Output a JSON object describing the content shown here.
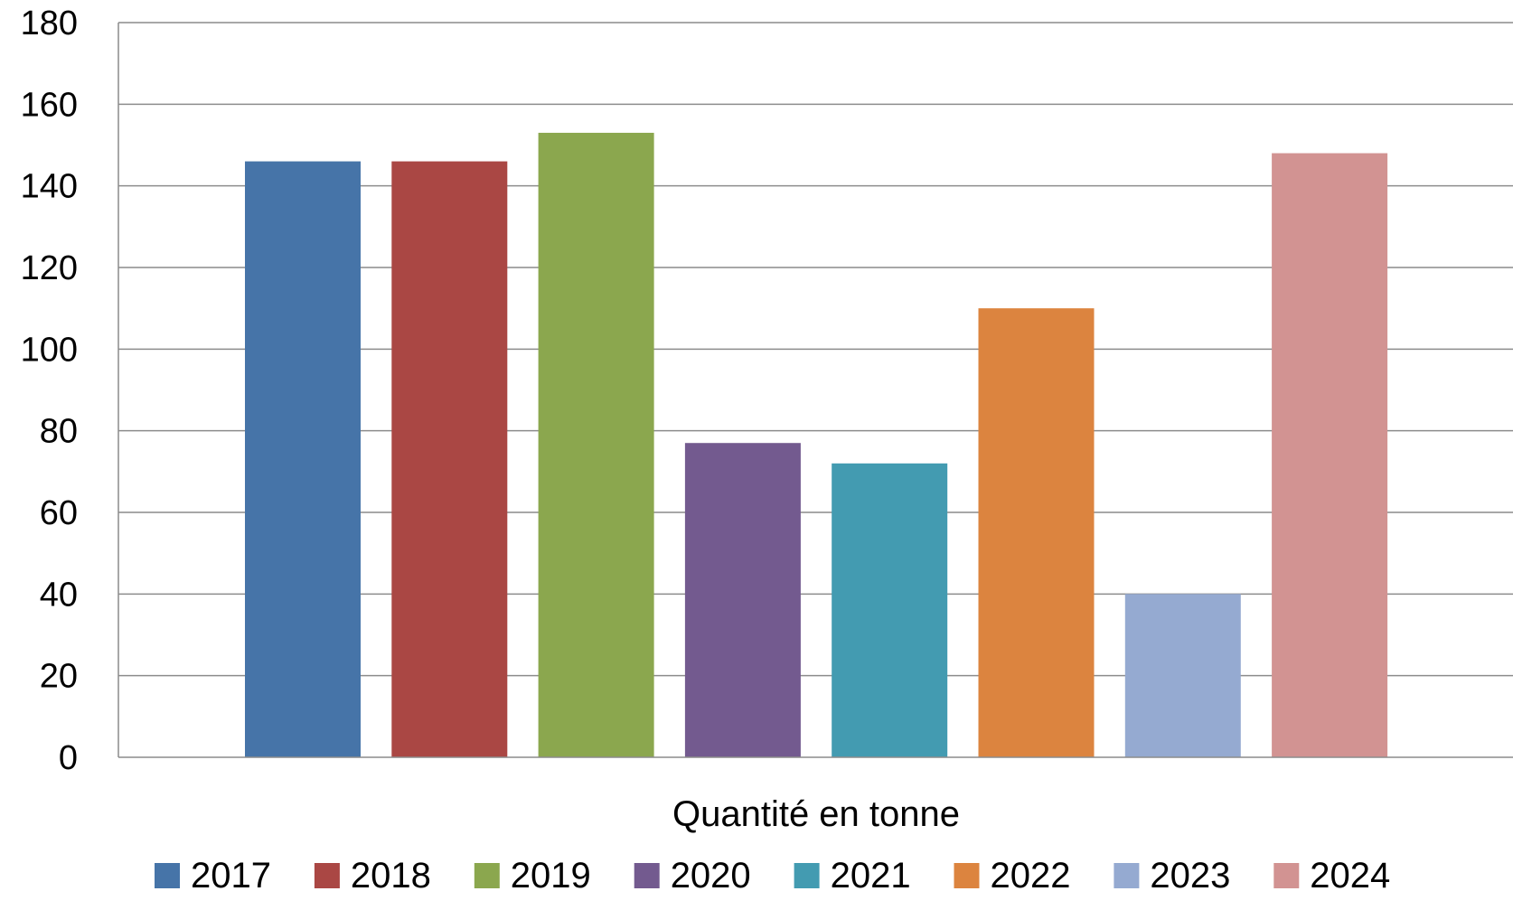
{
  "chart_data": {
    "type": "bar",
    "title": "",
    "xlabel": "Quantité en tonne",
    "ylabel": "",
    "ylim": [
      0,
      180
    ],
    "yticks": [
      0,
      20,
      40,
      60,
      80,
      100,
      120,
      140,
      160,
      180
    ],
    "grid": true,
    "legend_position": "bottom",
    "categories": [
      "Quantité en tonne"
    ],
    "series": [
      {
        "name": "2017",
        "values": [
          146
        ],
        "color": "#4674A8"
      },
      {
        "name": "2018",
        "values": [
          146
        ],
        "color": "#AA4744"
      },
      {
        "name": "2019",
        "values": [
          153
        ],
        "color": "#8BA74E"
      },
      {
        "name": "2020",
        "values": [
          77
        ],
        "color": "#735A8F"
      },
      {
        "name": "2021",
        "values": [
          72
        ],
        "color": "#439BB1"
      },
      {
        "name": "2022",
        "values": [
          110
        ],
        "color": "#DC843F"
      },
      {
        "name": "2023",
        "values": [
          40
        ],
        "color": "#95AAD1"
      },
      {
        "name": "2024",
        "values": [
          148
        ],
        "color": "#D29392"
      }
    ]
  }
}
